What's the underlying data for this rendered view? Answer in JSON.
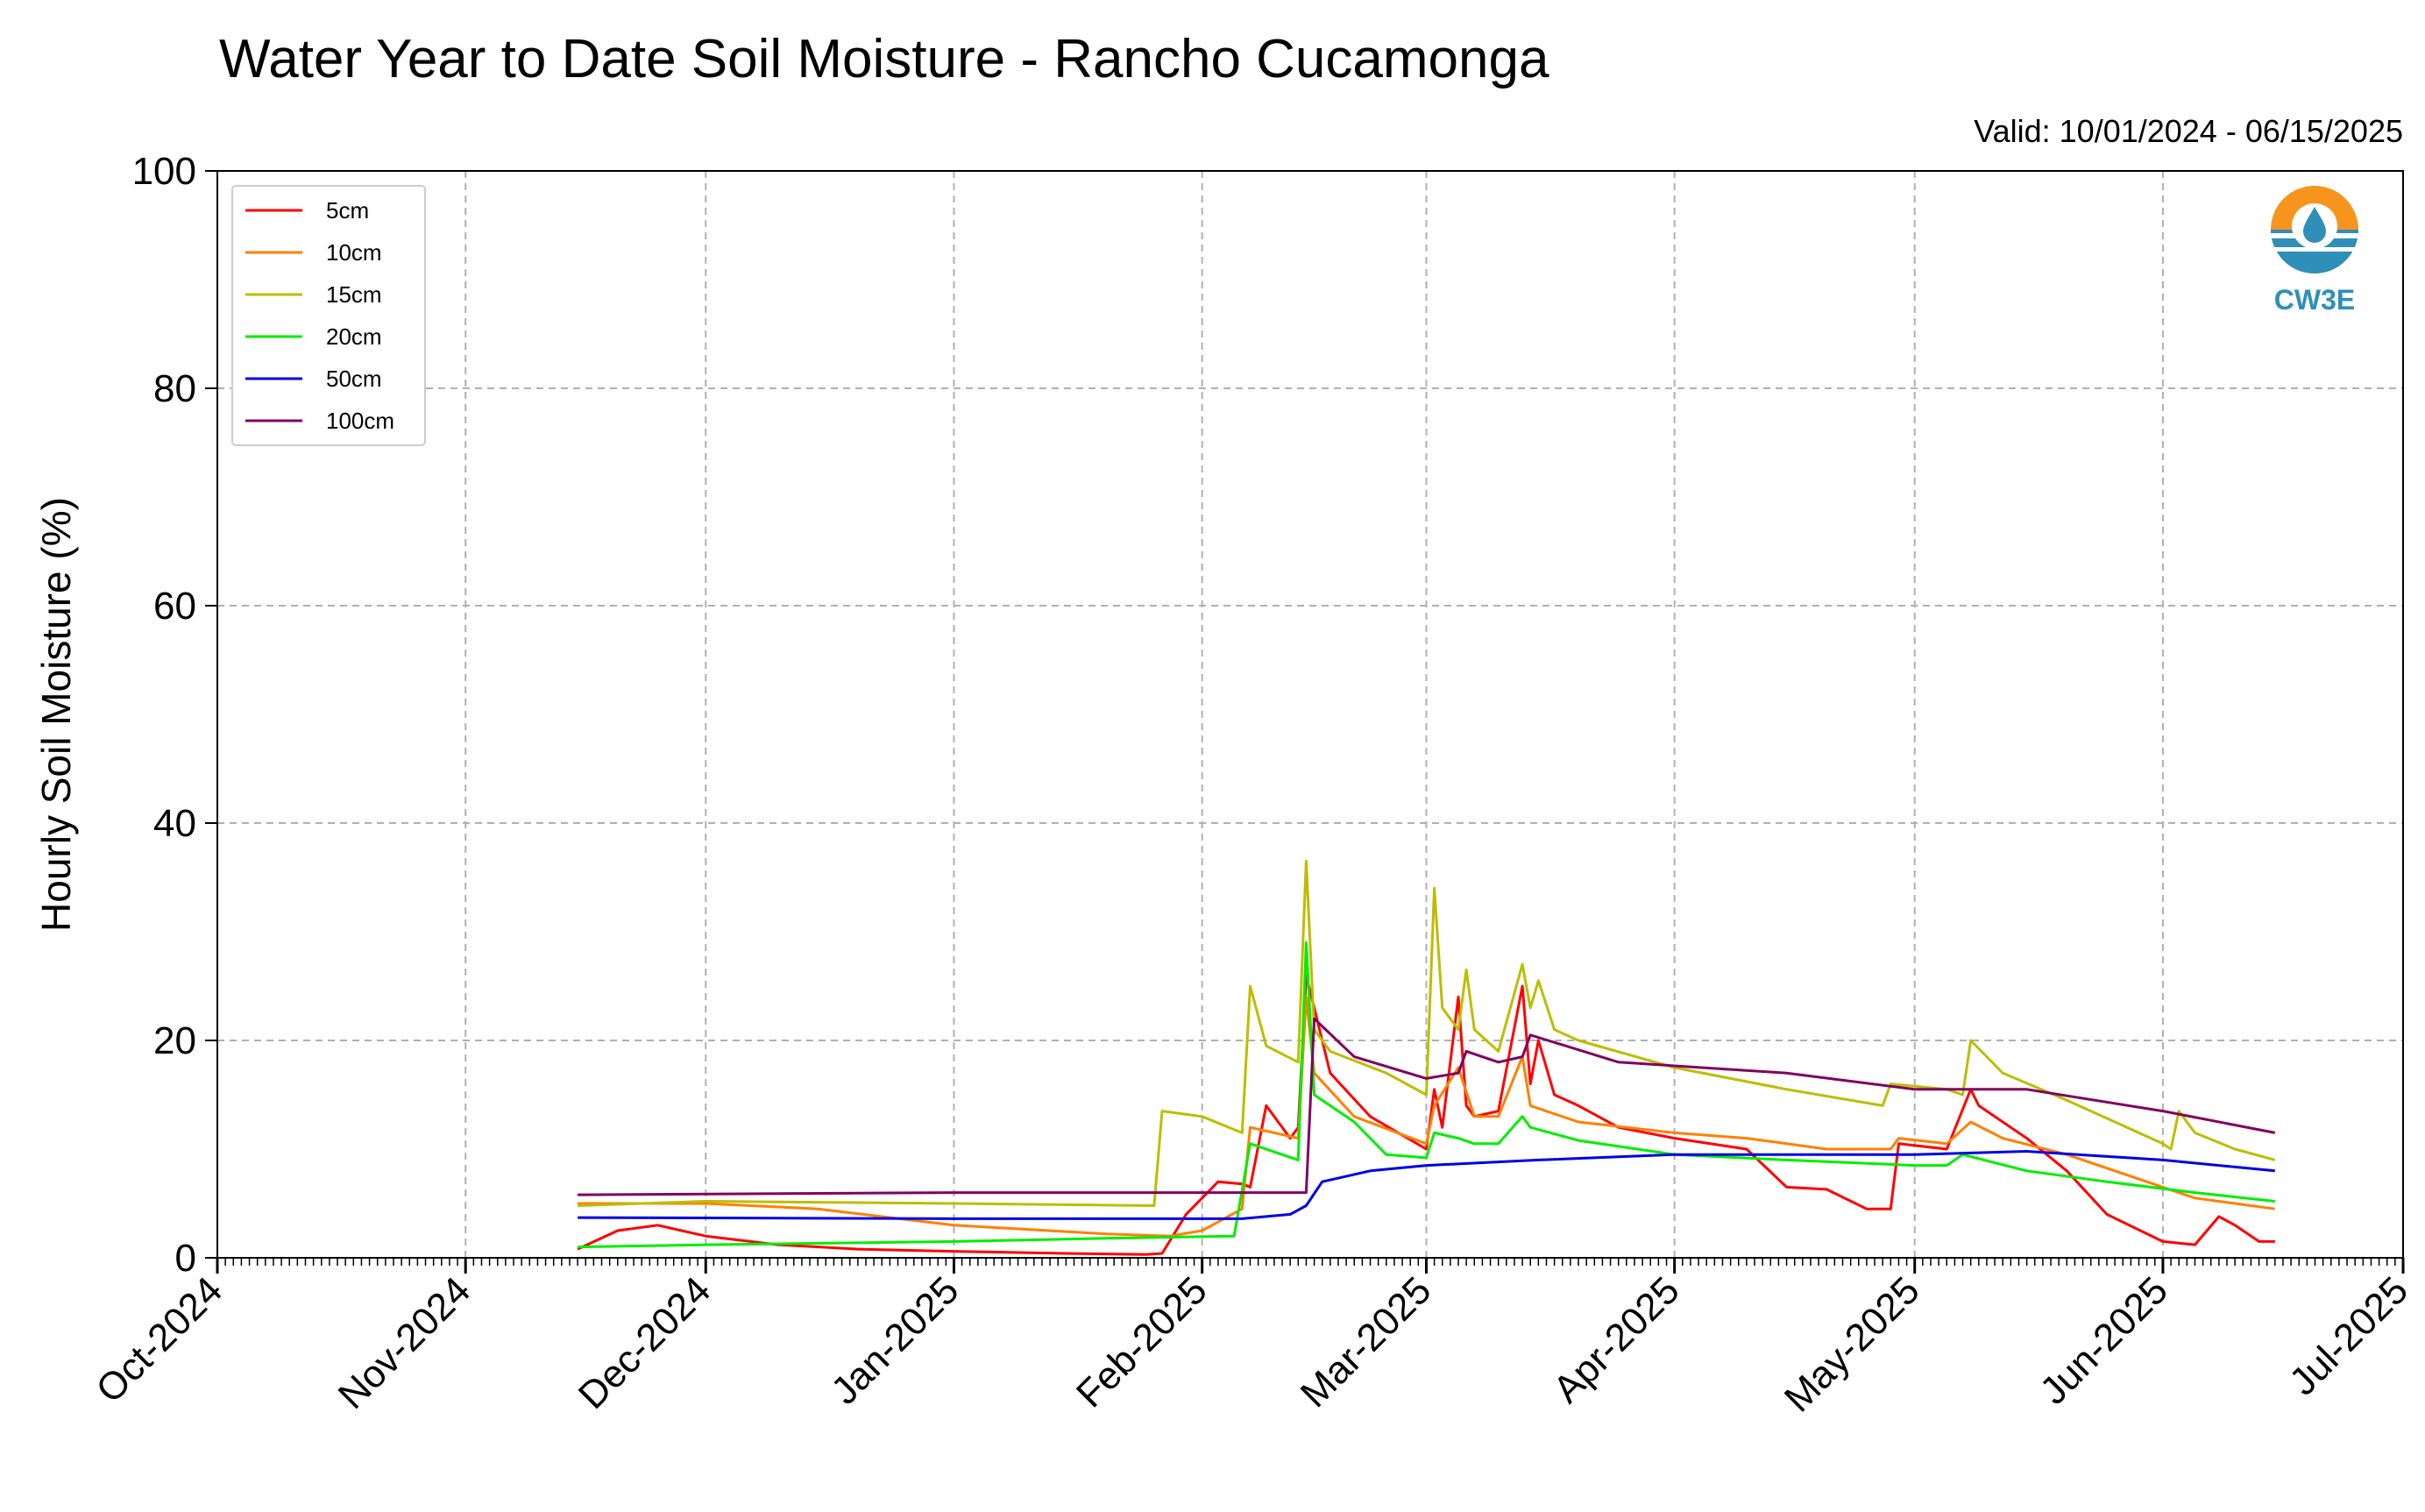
{
  "chart_data": {
    "type": "line",
    "title": "Water Year to Date Soil Moisture - Rancho Cucamonga",
    "subtitle": "Valid: 10/01/2024 - 06/15/2025",
    "xlabel": "",
    "ylabel": "Hourly Soil Moisture (%)",
    "xlim": [
      "2024-10-01",
      "2025-07-01"
    ],
    "ylim": [
      0,
      100
    ],
    "yticks": [
      0,
      20,
      40,
      60,
      80,
      100
    ],
    "xticks": [
      "2024-10-01",
      "2024-11-01",
      "2024-12-01",
      "2025-01-01",
      "2025-02-01",
      "2025-03-01",
      "2025-04-01",
      "2025-05-01",
      "2025-06-01",
      "2025-07-01"
    ],
    "xtick_labels": [
      "Oct-2024",
      "Nov-2024",
      "Dec-2024",
      "Jan-2025",
      "Feb-2025",
      "Mar-2025",
      "Apr-2025",
      "May-2025",
      "Jun-2025",
      "Jul-2025"
    ],
    "grid": true,
    "legend_position": "top-left",
    "logo_text": "CW3E",
    "series": [
      {
        "name": "5cm",
        "color": "#ff0000",
        "x": [
          "2024-11-15",
          "2024-11-20",
          "2024-11-25",
          "2024-12-01",
          "2024-12-10",
          "2024-12-20",
          "2025-01-01",
          "2025-01-15",
          "2025-01-25",
          "2025-01-27",
          "2025-01-30",
          "2025-02-03",
          "2025-02-06",
          "2025-02-07",
          "2025-02-09",
          "2025-02-12",
          "2025-02-13",
          "2025-02-14",
          "2025-02-17",
          "2025-02-22",
          "2025-03-01",
          "2025-03-02",
          "2025-03-03",
          "2025-03-05",
          "2025-03-06",
          "2025-03-07",
          "2025-03-10",
          "2025-03-13",
          "2025-03-14",
          "2025-03-15",
          "2025-03-17",
          "2025-03-20",
          "2025-03-25",
          "2025-04-01",
          "2025-04-10",
          "2025-04-15",
          "2025-04-20",
          "2025-04-25",
          "2025-04-28",
          "2025-04-29",
          "2025-05-05",
          "2025-05-08",
          "2025-05-09",
          "2025-05-15",
          "2025-05-20",
          "2025-05-25",
          "2025-06-01",
          "2025-06-05",
          "2025-06-08",
          "2025-06-10",
          "2025-06-13",
          "2025-06-15"
        ],
        "y": [
          0.8,
          2.5,
          3.0,
          2.0,
          1.2,
          0.8,
          0.6,
          0.4,
          0.3,
          0.4,
          4.0,
          7.0,
          6.8,
          6.5,
          14.0,
          11.0,
          12.0,
          26.0,
          17.0,
          13.0,
          10.0,
          15.5,
          12.0,
          24.0,
          14.0,
          13.0,
          13.5,
          25.0,
          16.0,
          20.0,
          15.0,
          14.0,
          12.0,
          11.0,
          10.0,
          6.5,
          6.3,
          4.5,
          4.5,
          10.5,
          10.0,
          15.5,
          14.0,
          11.0,
          8.0,
          4.0,
          1.5,
          1.2,
          3.8,
          3.0,
          1.5,
          1.5
        ]
      },
      {
        "name": "10cm",
        "color": "#ff8000",
        "x": [
          "2024-11-15",
          "2024-12-01",
          "2024-12-15",
          "2025-01-01",
          "2025-01-20",
          "2025-01-28",
          "2025-02-01",
          "2025-02-06",
          "2025-02-07",
          "2025-02-13",
          "2025-02-14",
          "2025-02-15",
          "2025-02-20",
          "2025-03-01",
          "2025-03-02",
          "2025-03-05",
          "2025-03-07",
          "2025-03-10",
          "2025-03-13",
          "2025-03-14",
          "2025-03-20",
          "2025-04-01",
          "2025-04-10",
          "2025-04-20",
          "2025-04-28",
          "2025-04-29",
          "2025-05-05",
          "2025-05-08",
          "2025-05-12",
          "2025-05-20",
          "2025-06-01",
          "2025-06-05",
          "2025-06-10",
          "2025-06-15"
        ],
        "y": [
          5.0,
          5.0,
          4.5,
          3.0,
          2.2,
          2.0,
          2.5,
          4.5,
          12.0,
          11.0,
          24.0,
          17.0,
          13.0,
          10.5,
          14.0,
          17.5,
          13.0,
          13.0,
          18.5,
          14.0,
          12.5,
          11.5,
          11.0,
          10.0,
          10.0,
          11.0,
          10.5,
          12.5,
          11.0,
          9.5,
          6.5,
          5.5,
          5.0,
          4.5
        ]
      },
      {
        "name": "15cm",
        "color": "#bdbd00",
        "x": [
          "2024-11-15",
          "2024-12-01",
          "2025-01-01",
          "2025-01-26",
          "2025-01-27",
          "2025-02-01",
          "2025-02-06",
          "2025-02-07",
          "2025-02-09",
          "2025-02-13",
          "2025-02-14",
          "2025-02-15",
          "2025-02-17",
          "2025-02-24",
          "2025-03-01",
          "2025-03-02",
          "2025-03-03",
          "2025-03-05",
          "2025-03-06",
          "2025-03-07",
          "2025-03-10",
          "2025-03-13",
          "2025-03-14",
          "2025-03-15",
          "2025-03-17",
          "2025-03-20",
          "2025-04-01",
          "2025-04-15",
          "2025-04-27",
          "2025-04-28",
          "2025-05-05",
          "2025-05-07",
          "2025-05-08",
          "2025-05-12",
          "2025-05-20",
          "2025-06-01",
          "2025-06-02",
          "2025-06-03",
          "2025-06-05",
          "2025-06-10",
          "2025-06-15"
        ],
        "y": [
          4.8,
          5.2,
          5.0,
          4.8,
          13.5,
          13.0,
          11.5,
          25.0,
          19.5,
          18.0,
          36.5,
          21.0,
          19.0,
          17.0,
          15.0,
          34.0,
          23.0,
          21.0,
          26.5,
          21.0,
          19.0,
          27.0,
          23.0,
          25.5,
          21.0,
          20.0,
          17.5,
          15.5,
          14.0,
          16.0,
          15.5,
          15.0,
          20.0,
          17.0,
          14.5,
          10.5,
          10.0,
          13.5,
          11.5,
          10.0,
          9.0
        ]
      },
      {
        "name": "20cm",
        "color": "#00ee00",
        "x": [
          "2024-11-15",
          "2024-12-01",
          "2025-01-01",
          "2025-01-20",
          "2025-02-05",
          "2025-02-07",
          "2025-02-13",
          "2025-02-14",
          "2025-02-15",
          "2025-02-20",
          "2025-02-24",
          "2025-03-01",
          "2025-03-02",
          "2025-03-05",
          "2025-03-07",
          "2025-03-10",
          "2025-03-13",
          "2025-03-14",
          "2025-03-20",
          "2025-04-01",
          "2025-04-15",
          "2025-05-01",
          "2025-05-05",
          "2025-05-07",
          "2025-05-15",
          "2025-05-25",
          "2025-06-05",
          "2025-06-15"
        ],
        "y": [
          1.0,
          1.2,
          1.5,
          1.8,
          2.0,
          10.5,
          9.0,
          29.0,
          15.0,
          12.5,
          9.5,
          9.2,
          11.5,
          11.0,
          10.5,
          10.5,
          13.0,
          12.0,
          10.8,
          9.5,
          9.0,
          8.5,
          8.5,
          9.5,
          8.0,
          7.0,
          6.0,
          5.2
        ]
      },
      {
        "name": "50cm",
        "color": "#0000e6",
        "x": [
          "2024-11-15",
          "2025-01-01",
          "2025-02-06",
          "2025-02-12",
          "2025-02-14",
          "2025-02-16",
          "2025-02-22",
          "2025-03-01",
          "2025-03-15",
          "2025-04-01",
          "2025-04-15",
          "2025-05-01",
          "2025-05-15",
          "2025-06-01",
          "2025-06-15"
        ],
        "y": [
          3.7,
          3.6,
          3.6,
          4.0,
          4.8,
          7.0,
          8.0,
          8.5,
          9.0,
          9.5,
          9.5,
          9.5,
          9.8,
          9.0,
          8.0
        ]
      },
      {
        "name": "100cm",
        "color": "#800060",
        "x": [
          "2024-11-15",
          "2025-01-01",
          "2025-02-13",
          "2025-02-14",
          "2025-02-15",
          "2025-02-20",
          "2025-03-01",
          "2025-03-05",
          "2025-03-06",
          "2025-03-10",
          "2025-03-13",
          "2025-03-14",
          "2025-03-25",
          "2025-04-15",
          "2025-05-01",
          "2025-05-15",
          "2025-06-01",
          "2025-06-15"
        ],
        "y": [
          5.8,
          6.0,
          6.0,
          6.0,
          22.0,
          18.5,
          16.5,
          17.0,
          19.0,
          18.0,
          18.5,
          20.5,
          18.0,
          17.0,
          15.5,
          15.5,
          13.5,
          11.5
        ]
      }
    ]
  }
}
